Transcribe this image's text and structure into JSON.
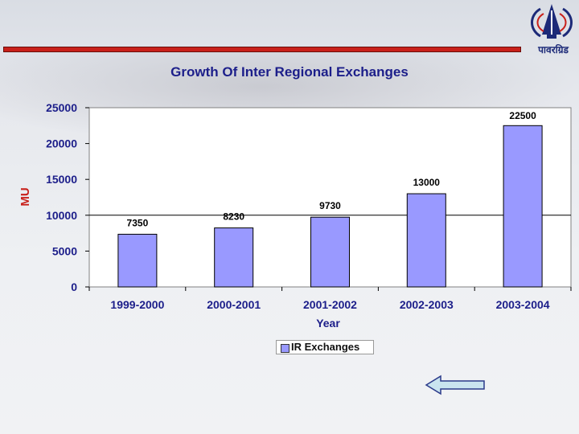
{
  "logo": {
    "text": "पावरग्रिड"
  },
  "chart_data": {
    "type": "bar",
    "title": "Growth Of Inter Regional Exchanges",
    "xlabel": "Year",
    "ylabel": "MU",
    "categories": [
      "1999-2000",
      "2000-2001",
      "2001-2002",
      "2002-2003",
      "2003-2004"
    ],
    "series": [
      {
        "name": "IR Exchanges",
        "values": [
          7350,
          8230,
          9730,
          13000,
          22500
        ]
      }
    ],
    "data_labels": [
      "7350",
      "8230",
      "9730",
      "13000",
      "22500"
    ],
    "ylim": [
      0,
      25000
    ],
    "yticks": [
      0,
      5000,
      10000,
      15000,
      20000,
      25000
    ],
    "grid": true,
    "legend_position": "bottom-center",
    "colors": {
      "bar": "#9999ff",
      "axis_text": "#1c1e8a",
      "title": "#1c1e8a"
    }
  },
  "navigation": {
    "back_icon": "left-arrow-icon"
  }
}
